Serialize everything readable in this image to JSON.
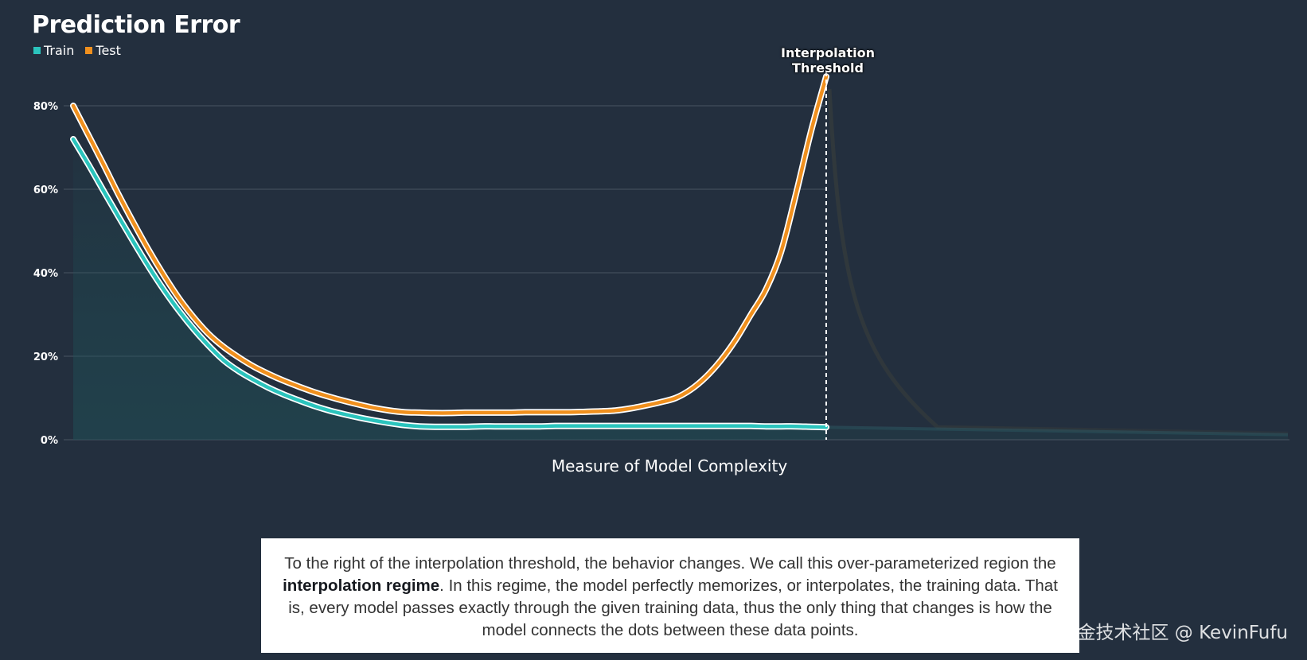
{
  "chart_data": {
    "type": "line",
    "title": "Prediction Error",
    "xlabel": "Measure of Model Complexity",
    "ylabel": "",
    "ylim": [
      0,
      0.8
    ],
    "yticks": [
      "0%",
      "20%",
      "40%",
      "60%",
      "80%"
    ],
    "legend_position": "top-left",
    "grid": true,
    "series": [
      {
        "name": "Train",
        "color": "#2bc4bd",
        "x": [
          0,
          0.2,
          0.4,
          0.6,
          0.8,
          1.0,
          1.2,
          1.4,
          1.6,
          1.8,
          2.0,
          2.2,
          2.4,
          2.6,
          2.8,
          3.0,
          3.2,
          3.4,
          3.6,
          3.8,
          4.0,
          4.2,
          4.4,
          4.6,
          4.8,
          5.0,
          5.2,
          5.4,
          5.6,
          5.8,
          6.0,
          6.2,
          6.4,
          6.6,
          6.8,
          7.0,
          7.2,
          7.4,
          7.6,
          7.8,
          8.0,
          8.2,
          8.4,
          8.6,
          8.8,
          9.0,
          9.2,
          9.4,
          9.6,
          9.8,
          10.0
        ],
        "values": [
          0.72,
          0.66,
          0.597,
          0.535,
          0.474,
          0.415,
          0.36,
          0.31,
          0.265,
          0.225,
          0.19,
          0.164,
          0.143,
          0.124,
          0.108,
          0.094,
          0.081,
          0.07,
          0.061,
          0.053,
          0.046,
          0.04,
          0.035,
          0.032,
          0.031,
          0.031,
          0.031,
          0.032,
          0.032,
          0.032,
          0.032,
          0.032,
          0.033,
          0.033,
          0.033,
          0.033,
          0.033,
          0.033,
          0.033,
          0.033,
          0.033,
          0.033,
          0.033,
          0.033,
          0.033,
          0.033,
          0.032,
          0.032,
          0.032,
          0.031,
          0.03
        ]
      },
      {
        "name": "Test",
        "color": "#f0901e",
        "x": [
          0,
          0.2,
          0.4,
          0.6,
          0.8,
          1.0,
          1.2,
          1.4,
          1.6,
          1.8,
          2.0,
          2.2,
          2.4,
          2.6,
          2.8,
          3.0,
          3.2,
          3.4,
          3.6,
          3.8,
          4.0,
          4.2,
          4.4,
          4.6,
          4.8,
          5.0,
          5.2,
          5.4,
          5.6,
          5.8,
          6.0,
          6.2,
          6.4,
          6.6,
          6.8,
          7.0,
          7.2,
          7.4,
          7.6,
          7.8,
          8.0,
          8.2,
          8.4,
          8.6,
          8.8,
          9.0,
          9.2,
          9.4,
          9.6,
          9.8,
          10.0
        ],
        "values": [
          0.8,
          0.73,
          0.66,
          0.588,
          0.52,
          0.455,
          0.395,
          0.34,
          0.293,
          0.253,
          0.222,
          0.197,
          0.175,
          0.157,
          0.141,
          0.127,
          0.114,
          0.103,
          0.093,
          0.084,
          0.076,
          0.07,
          0.066,
          0.065,
          0.064,
          0.064,
          0.065,
          0.065,
          0.065,
          0.065,
          0.066,
          0.066,
          0.066,
          0.066,
          0.067,
          0.068,
          0.07,
          0.075,
          0.082,
          0.09,
          0.1,
          0.12,
          0.15,
          0.19,
          0.24,
          0.3,
          0.36,
          0.45,
          0.59,
          0.74,
          0.87
        ]
      }
    ],
    "annotations": [
      {
        "text": "Interpolation\nThreshold",
        "x": 10.0
      }
    ]
  },
  "caption": {
    "before": "To the right of the interpolation threshold, the behavior changes. We call this over-parameterized region the ",
    "bold": "interpolation regime",
    "after": ". In this regime, the model perfectly memorizes, or interpolates, the training data. That is, every model passes exactly through the given training data, thus the only thing that changes is how the model connects the dots between these data points."
  },
  "watermark": "掘金技术社区 @ KevinFufu",
  "colors": {
    "background": "#232f3e",
    "grid": "#4a5563",
    "threshold_line": "#ffffff"
  }
}
